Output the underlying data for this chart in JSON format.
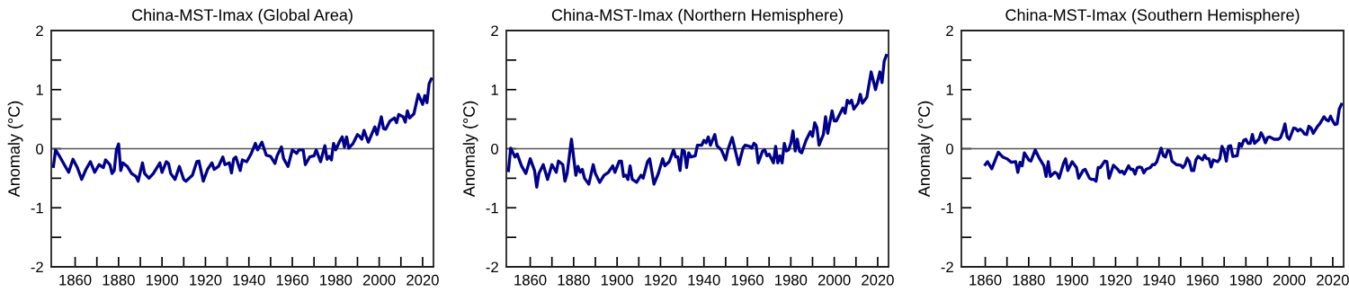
{
  "chart_data": [
    {
      "type": "line",
      "title": "China-MST-Imax (Global Area)",
      "ylabel": "Anomaly (°C)",
      "xlim": [
        1849,
        2025
      ],
      "ylim": [
        -2,
        2
      ],
      "xticks": [
        {
          "value": 1860,
          "label": "1860"
        },
        {
          "value": 1870,
          "label": null
        },
        {
          "value": 1880,
          "label": "1880"
        },
        {
          "value": 1890,
          "label": null
        },
        {
          "value": 1900,
          "label": "1900"
        },
        {
          "value": 1910,
          "label": null
        },
        {
          "value": 1920,
          "label": "1920"
        },
        {
          "value": 1930,
          "label": null
        },
        {
          "value": 1940,
          "label": "1940"
        },
        {
          "value": 1950,
          "label": null
        },
        {
          "value": 1960,
          "label": "1960"
        },
        {
          "value": 1970,
          "label": null
        },
        {
          "value": 1980,
          "label": "1980"
        },
        {
          "value": 1990,
          "label": null
        },
        {
          "value": 2000,
          "label": "2000"
        },
        {
          "value": 2010,
          "label": null
        },
        {
          "value": 2020,
          "label": "2020"
        }
      ],
      "yticks": [
        -2,
        {
          "value": -1.5,
          "label": null
        },
        -1,
        {
          "value": -0.5,
          "label": null
        },
        0,
        {
          "value": 0.5,
          "label": null
        },
        1,
        {
          "value": 1.5,
          "label": null
        },
        2
      ],
      "ref_lines": [
        {
          "axis": "y",
          "value": 0,
          "color": "#555555"
        }
      ],
      "x": [
        1850,
        1851,
        1853,
        1855,
        1857,
        1859,
        1861,
        1863,
        1865,
        1867,
        1869,
        1871,
        1873,
        1874,
        1876,
        1877,
        1878,
        1879,
        1880,
        1881,
        1882,
        1884,
        1886,
        1888,
        1889,
        1891,
        1892,
        1894,
        1896,
        1899,
        1900,
        1902,
        1903,
        1904,
        1906,
        1908,
        1910,
        1911,
        1914,
        1916,
        1917,
        1919,
        1921,
        1923,
        1924,
        1926,
        1928,
        1929,
        1931,
        1932,
        1933,
        1934,
        1936,
        1937,
        1939,
        1941,
        1943,
        1944,
        1946,
        1948,
        1950,
        1952,
        1953,
        1955,
        1956,
        1958,
        1960,
        1962,
        1963,
        1965,
        1966,
        1968,
        1970,
        1971,
        1973,
        1975,
        1976,
        1977,
        1978,
        1979,
        1980,
        1982,
        1983,
        1984,
        1985,
        1986,
        1988,
        1990,
        1991,
        1992,
        1993,
        1995,
        1998,
        1999,
        2001,
        2002,
        2003,
        2005,
        2007,
        2008,
        2009,
        2011,
        2012,
        2013,
        2014,
        2016,
        2018,
        2020,
        2021,
        2022,
        2023,
        2024
      ],
      "series": [
        {
          "color": "#00008b",
          "values": [
            -0.3,
            -0.02,
            -0.14,
            -0.27,
            -0.4,
            -0.18,
            -0.32,
            -0.52,
            -0.35,
            -0.22,
            -0.4,
            -0.27,
            -0.32,
            -0.19,
            -0.27,
            -0.42,
            -0.37,
            -0.02,
            0.08,
            -0.37,
            -0.24,
            -0.3,
            -0.42,
            -0.47,
            -0.55,
            -0.24,
            -0.42,
            -0.5,
            -0.42,
            -0.24,
            -0.4,
            -0.22,
            -0.25,
            -0.42,
            -0.52,
            -0.3,
            -0.52,
            -0.55,
            -0.45,
            -0.22,
            -0.21,
            -0.55,
            -0.35,
            -0.24,
            -0.35,
            -0.3,
            -0.14,
            -0.27,
            -0.24,
            -0.41,
            -0.17,
            -0.14,
            -0.37,
            -0.19,
            -0.22,
            -0.09,
            0.09,
            -0.02,
            0.11,
            -0.11,
            -0.13,
            -0.25,
            -0.12,
            0.03,
            -0.17,
            -0.3,
            -0.02,
            -0.08,
            -0.02,
            -0.02,
            -0.27,
            -0.14,
            -0.12,
            -0.02,
            -0.22,
            0.05,
            -0.18,
            -0.13,
            -0.19,
            0.09,
            -0.02,
            0.14,
            0.2,
            0.03,
            0.2,
            0.01,
            0.09,
            0.24,
            0.21,
            0.16,
            0.31,
            0.11,
            0.37,
            0.24,
            0.54,
            0.34,
            0.33,
            0.47,
            0.52,
            0.44,
            0.58,
            0.54,
            0.45,
            0.64,
            0.52,
            0.59,
            0.92,
            0.75,
            0.9,
            0.78,
            1.1,
            1.18
          ]
        }
      ]
    },
    {
      "type": "line",
      "title": "China-MST-Imax (Northern Hemisphere)",
      "ylabel": "Anomaly (°C)",
      "xlim": [
        1849,
        2025
      ],
      "ylim": [
        -2,
        2
      ],
      "xticks": [
        {
          "value": 1860,
          "label": "1860"
        },
        {
          "value": 1870,
          "label": null
        },
        {
          "value": 1880,
          "label": "1880"
        },
        {
          "value": 1890,
          "label": null
        },
        {
          "value": 1900,
          "label": "1900"
        },
        {
          "value": 1910,
          "label": null
        },
        {
          "value": 1920,
          "label": "1920"
        },
        {
          "value": 1930,
          "label": null
        },
        {
          "value": 1940,
          "label": "1940"
        },
        {
          "value": 1950,
          "label": null
        },
        {
          "value": 1960,
          "label": "1960"
        },
        {
          "value": 1970,
          "label": null
        },
        {
          "value": 1980,
          "label": "1980"
        },
        {
          "value": 1990,
          "label": null
        },
        {
          "value": 2000,
          "label": "2000"
        },
        {
          "value": 2010,
          "label": null
        },
        {
          "value": 2020,
          "label": "2020"
        }
      ],
      "yticks": [
        -2,
        {
          "value": -1.5,
          "label": null
        },
        -1,
        {
          "value": -0.5,
          "label": null
        },
        0,
        {
          "value": 0.5,
          "label": null
        },
        1,
        {
          "value": 1.5,
          "label": null
        },
        2
      ],
      "ref_lines": [
        {
          "axis": "y",
          "value": 0,
          "color": "#555555"
        }
      ],
      "x": [
        1850,
        1851,
        1853,
        1854,
        1856,
        1858,
        1860,
        1862,
        1863,
        1864,
        1866,
        1868,
        1870,
        1872,
        1873,
        1875,
        1876,
        1877,
        1879,
        1881,
        1882,
        1883,
        1884,
        1885,
        1887,
        1889,
        1890,
        1892,
        1894,
        1896,
        1898,
        1899,
        1901,
        1902,
        1903,
        1904,
        1905,
        1906,
        1907,
        1909,
        1911,
        1912,
        1914,
        1915,
        1917,
        1919,
        1921,
        1922,
        1924,
        1926,
        1927,
        1928,
        1929,
        1930,
        1931,
        1932,
        1933,
        1934,
        1936,
        1937,
        1939,
        1940,
        1941,
        1942,
        1943,
        1945,
        1946,
        1948,
        1950,
        1951,
        1953,
        1955,
        1956,
        1958,
        1959,
        1961,
        1962,
        1963,
        1964,
        1965,
        1967,
        1968,
        1969,
        1970,
        1972,
        1973,
        1974,
        1975,
        1976,
        1977,
        1978,
        1979,
        1980,
        1981,
        1982,
        1983,
        1984,
        1985,
        1987,
        1989,
        1990,
        1991,
        1992,
        1993,
        1995,
        1996,
        1997,
        1999,
        2000,
        2001,
        2003,
        2004,
        2005,
        2006,
        2007,
        2008,
        2009,
        2011,
        2012,
        2013,
        2015,
        2017,
        2019,
        2021,
        2022,
        2023,
        2024
      ],
      "series": [
        {
          "color": "#00008b",
          "values": [
            -0.37,
            0.01,
            -0.14,
            -0.09,
            -0.29,
            -0.42,
            -0.17,
            -0.37,
            -0.65,
            -0.42,
            -0.27,
            -0.52,
            -0.27,
            -0.4,
            -0.21,
            -0.27,
            -0.55,
            -0.42,
            0.16,
            -0.45,
            -0.3,
            -0.4,
            -0.35,
            -0.5,
            -0.6,
            -0.27,
            -0.42,
            -0.57,
            -0.45,
            -0.4,
            -0.29,
            -0.4,
            -0.21,
            -0.21,
            -0.47,
            -0.45,
            -0.52,
            -0.29,
            -0.52,
            -0.57,
            -0.45,
            -0.5,
            -0.22,
            -0.17,
            -0.6,
            -0.42,
            -0.17,
            -0.29,
            -0.22,
            -0.02,
            -0.14,
            -0.14,
            -0.37,
            -0.02,
            -0.04,
            -0.32,
            -0.07,
            -0.14,
            -0.12,
            0.06,
            0.06,
            0.14,
            0.1,
            0.2,
            0.06,
            0.24,
            0.05,
            -0.02,
            -0.19,
            -0.02,
            0.19,
            -0.12,
            -0.27,
            0.01,
            0.06,
            0.04,
            0.01,
            0.09,
            0.06,
            -0.24,
            -0.04,
            -0.02,
            -0.12,
            -0.09,
            -0.24,
            0.04,
            -0.24,
            -0.12,
            -0.24,
            0.09,
            -0.04,
            -0.02,
            0.09,
            0.3,
            -0.04,
            0.16,
            -0.04,
            -0.07,
            0.14,
            0.29,
            0.21,
            0.44,
            0.36,
            0.06,
            0.24,
            0.54,
            0.26,
            0.64,
            0.47,
            0.47,
            0.62,
            0.69,
            0.6,
            0.82,
            0.77,
            0.82,
            0.67,
            0.77,
            0.92,
            0.77,
            0.87,
            1.3,
            1.0,
            1.3,
            1.12,
            1.48,
            1.58
          ]
        }
      ]
    },
    {
      "type": "line",
      "title": "China-MST-Imax (Southern Hemisphere)",
      "ylabel": "Anomaly (°C)",
      "xlim": [
        1849,
        2025
      ],
      "ylim": [
        -2,
        2
      ],
      "xticks": [
        {
          "value": 1860,
          "label": "1860"
        },
        {
          "value": 1870,
          "label": null
        },
        {
          "value": 1880,
          "label": "1880"
        },
        {
          "value": 1890,
          "label": null
        },
        {
          "value": 1900,
          "label": "1900"
        },
        {
          "value": 1910,
          "label": null
        },
        {
          "value": 1920,
          "label": "1920"
        },
        {
          "value": 1930,
          "label": null
        },
        {
          "value": 1940,
          "label": "1940"
        },
        {
          "value": 1950,
          "label": null
        },
        {
          "value": 1960,
          "label": "1960"
        },
        {
          "value": 1970,
          "label": null
        },
        {
          "value": 1980,
          "label": "1980"
        },
        {
          "value": 1990,
          "label": null
        },
        {
          "value": 2000,
          "label": "2000"
        },
        {
          "value": 2010,
          "label": null
        },
        {
          "value": 2020,
          "label": "2020"
        }
      ],
      "yticks": [
        -2,
        {
          "value": -1.5,
          "label": null
        },
        -1,
        {
          "value": -0.5,
          "label": null
        },
        0,
        {
          "value": 0.5,
          "label": null
        },
        1,
        {
          "value": 1.5,
          "label": null
        },
        2
      ],
      "ref_lines": [
        {
          "axis": "y",
          "value": 0,
          "color": "#555555"
        }
      ],
      "x": [
        1860,
        1861,
        1863,
        1866,
        1868,
        1870,
        1872,
        1874,
        1875,
        1876,
        1877,
        1878,
        1880,
        1881,
        1883,
        1885,
        1887,
        1888,
        1889,
        1890,
        1892,
        1893,
        1894,
        1896,
        1897,
        1898,
        1900,
        1902,
        1903,
        1905,
        1906,
        1908,
        1909,
        1910,
        1911,
        1912,
        1913,
        1915,
        1916,
        1917,
        1919,
        1921,
        1922,
        1923,
        1924,
        1926,
        1927,
        1928,
        1929,
        1930,
        1931,
        1932,
        1933,
        1934,
        1936,
        1937,
        1938,
        1939,
        1941,
        1942,
        1943,
        1944,
        1945,
        1946,
        1948,
        1950,
        1951,
        1952,
        1953,
        1954,
        1955,
        1956,
        1957,
        1958,
        1960,
        1961,
        1962,
        1963,
        1964,
        1965,
        1967,
        1968,
        1969,
        1970,
        1971,
        1972,
        1973,
        1974,
        1976,
        1977,
        1978,
        1979,
        1980,
        1981,
        1982,
        1983,
        1984,
        1986,
        1987,
        1988,
        1989,
        1990,
        1991,
        1993,
        1995,
        1996,
        1997,
        1998,
        1999,
        2000,
        2002,
        2003,
        2004,
        2005,
        2006,
        2007,
        2008,
        2009,
        2010,
        2011,
        2013,
        2014,
        2016,
        2017,
        2018,
        2019,
        2020,
        2021,
        2022,
        2023,
        2024
      ],
      "series": [
        {
          "color": "#00008b",
          "values": [
            -0.27,
            -0.22,
            -0.34,
            -0.06,
            -0.14,
            -0.17,
            -0.23,
            -0.22,
            -0.4,
            -0.23,
            -0.29,
            -0.07,
            -0.19,
            -0.21,
            -0.02,
            -0.17,
            -0.29,
            -0.47,
            -0.22,
            -0.47,
            -0.4,
            -0.42,
            -0.5,
            -0.25,
            -0.17,
            -0.37,
            -0.22,
            -0.32,
            -0.5,
            -0.37,
            -0.35,
            -0.5,
            -0.52,
            -0.52,
            -0.55,
            -0.32,
            -0.32,
            -0.21,
            -0.22,
            -0.5,
            -0.28,
            -0.35,
            -0.4,
            -0.38,
            -0.43,
            -0.29,
            -0.35,
            -0.35,
            -0.43,
            -0.32,
            -0.31,
            -0.32,
            -0.41,
            -0.35,
            -0.32,
            -0.27,
            -0.27,
            -0.22,
            0.01,
            -0.12,
            -0.14,
            -0.03,
            -0.04,
            -0.21,
            -0.27,
            -0.28,
            -0.32,
            -0.27,
            -0.16,
            -0.22,
            -0.37,
            -0.37,
            -0.19,
            -0.13,
            -0.19,
            -0.11,
            -0.17,
            -0.17,
            -0.31,
            -0.19,
            -0.22,
            -0.17,
            0.04,
            -0.04,
            -0.21,
            0.04,
            0.05,
            -0.13,
            -0.12,
            0.09,
            0.04,
            0.14,
            0.16,
            0.09,
            0.09,
            0.24,
            0.09,
            0.16,
            0.27,
            0.2,
            0.1,
            0.19,
            0.2,
            0.16,
            0.16,
            0.19,
            0.29,
            0.42,
            0.2,
            0.16,
            0.35,
            0.34,
            0.3,
            0.33,
            0.3,
            0.25,
            0.24,
            0.38,
            0.35,
            0.26,
            0.38,
            0.42,
            0.54,
            0.49,
            0.47,
            0.55,
            0.47,
            0.41,
            0.42,
            0.67,
            0.75
          ]
        }
      ]
    }
  ]
}
